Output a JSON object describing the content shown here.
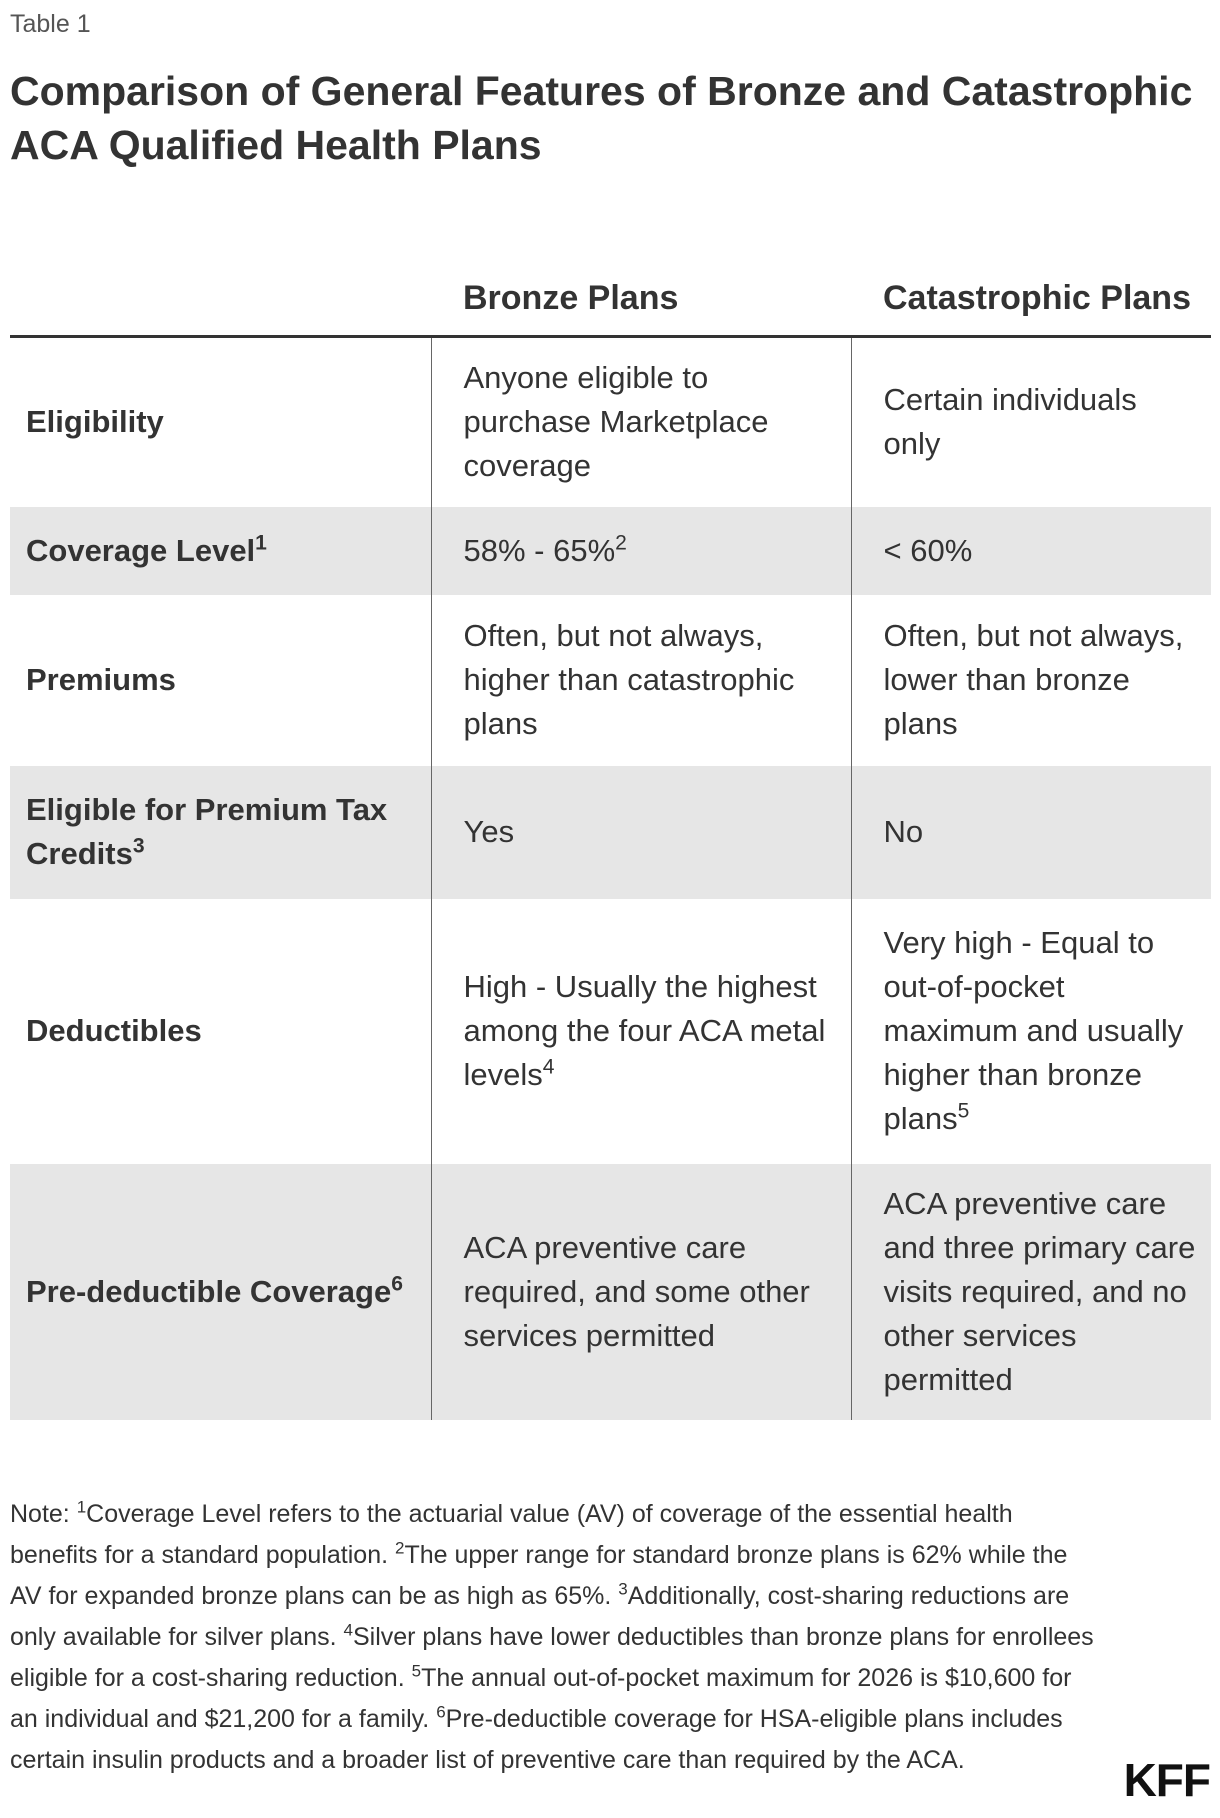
{
  "table_label": "Table 1",
  "title": "Comparison of General Features of Bronze and Catastrophic ACA Qualified Health Plans",
  "columns": {
    "blank": "",
    "bronze": "Bronze Plans",
    "catastrophic": "Catastrophic Plans"
  },
  "rows": [
    {
      "label": "Eligibility",
      "label_sup": "",
      "bronze": "Anyone eligible to purchase Marketplace coverage",
      "bronze_sup": "",
      "catastrophic": "Certain individuals only",
      "catastrophic_sup": ""
    },
    {
      "label": "Coverage Level",
      "label_sup": "1",
      "bronze": "58% - 65%",
      "bronze_sup": "2",
      "catastrophic": "< 60%",
      "catastrophic_sup": ""
    },
    {
      "label": "Premiums",
      "label_sup": "",
      "bronze": "Often, but not always, higher than catastrophic plans",
      "bronze_sup": "",
      "catastrophic": "Often, but not always, lower than bronze plans",
      "catastrophic_sup": ""
    },
    {
      "label": "Eligible for Premium Tax Credits",
      "label_sup": "3",
      "bronze": "Yes",
      "bronze_sup": "",
      "catastrophic": "No",
      "catastrophic_sup": ""
    },
    {
      "label": "Deductibles",
      "label_sup": "",
      "bronze": "High - Usually the highest among the four ACA metal levels",
      "bronze_sup": "4",
      "catastrophic": "Very high - Equal to out-of-pocket maximum and usually higher than bronze plans",
      "catastrophic_sup": "5"
    },
    {
      "label": "Pre-deductible Coverage",
      "label_sup": "6",
      "bronze": "ACA preventive care required, and some other services permitted",
      "bronze_sup": "",
      "catastrophic": "ACA preventive care and three primary care visits required, and no other services permitted",
      "catastrophic_sup": ""
    }
  ],
  "note": {
    "prefix": "Note: ",
    "items": [
      {
        "sup": "1",
        "text": "Coverage Level refers to the actuarial value (AV) of coverage of the essential health benefits for a standard population. "
      },
      {
        "sup": "2",
        "text": "The upper range for standard bronze plans is 62% while the AV for expanded bronze plans can be as high as 65%. "
      },
      {
        "sup": "3",
        "text": "Additionally, cost-sharing reductions are only available for silver plans. "
      },
      {
        "sup": "4",
        "text": "Silver plans have lower deductibles than bronze plans for enrollees eligible for a cost-sharing reduction. "
      },
      {
        "sup": "5",
        "text": "The annual out-of-pocket maximum for 2026 is $10,600 for an individual and $21,200 for a family. "
      },
      {
        "sup": "6",
        "text": "Pre-deductible coverage for HSA-eligible plans includes certain insulin products and a broader list of preventive care than required by the ACA."
      }
    ]
  },
  "logo": "KFF",
  "colors": {
    "shaded_row": "#e6e6e6",
    "text": "#333333",
    "rule": "#333333"
  }
}
